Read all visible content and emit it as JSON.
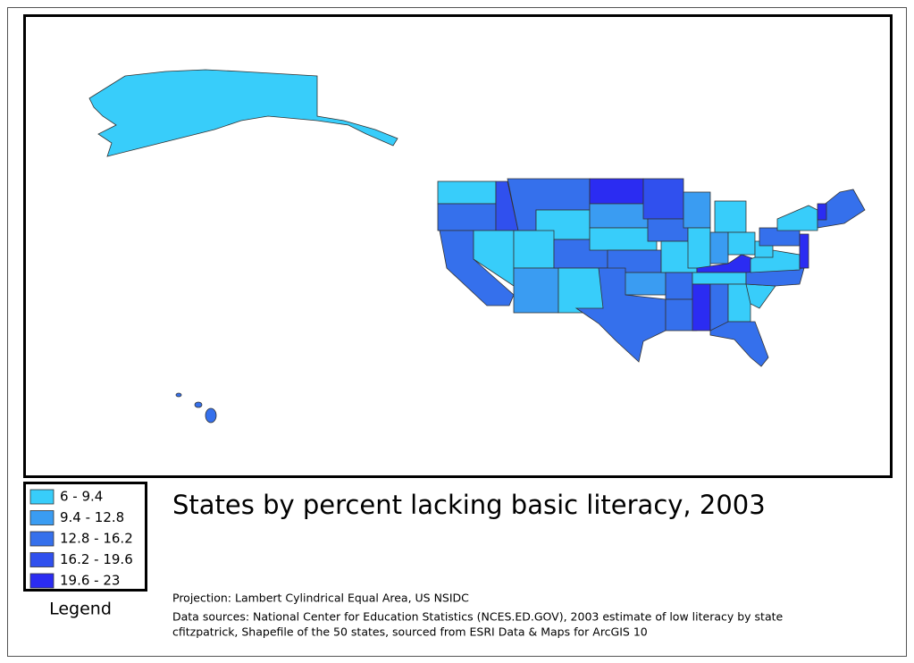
{
  "title": "States by percent lacking basic literacy, 2003",
  "legend": {
    "title": "Legend",
    "items": [
      {
        "label": "6 - 9.4",
        "color": "#38cdfa"
      },
      {
        "label": "9.4 - 12.8",
        "color": "#3a9cf2"
      },
      {
        "label": "12.8 - 16.2",
        "color": "#3570ec"
      },
      {
        "label": "16.2 - 19.6",
        "color": "#3050ee"
      },
      {
        "label": "19.6 - 23",
        "color": "#2b2cf2"
      }
    ]
  },
  "notes": {
    "projection": "Projection: Lambert Cylindrical Equal Area, US NSIDC",
    "sources": [
      "Data sources: National Center for Education Statistics (NCES.ED.GOV), 2003 estimate of low literacy by state",
      "cfitzpatrick, Shapefile of the 50 states, sourced from ESRI Data & Maps for ArcGIS 10"
    ]
  }
}
